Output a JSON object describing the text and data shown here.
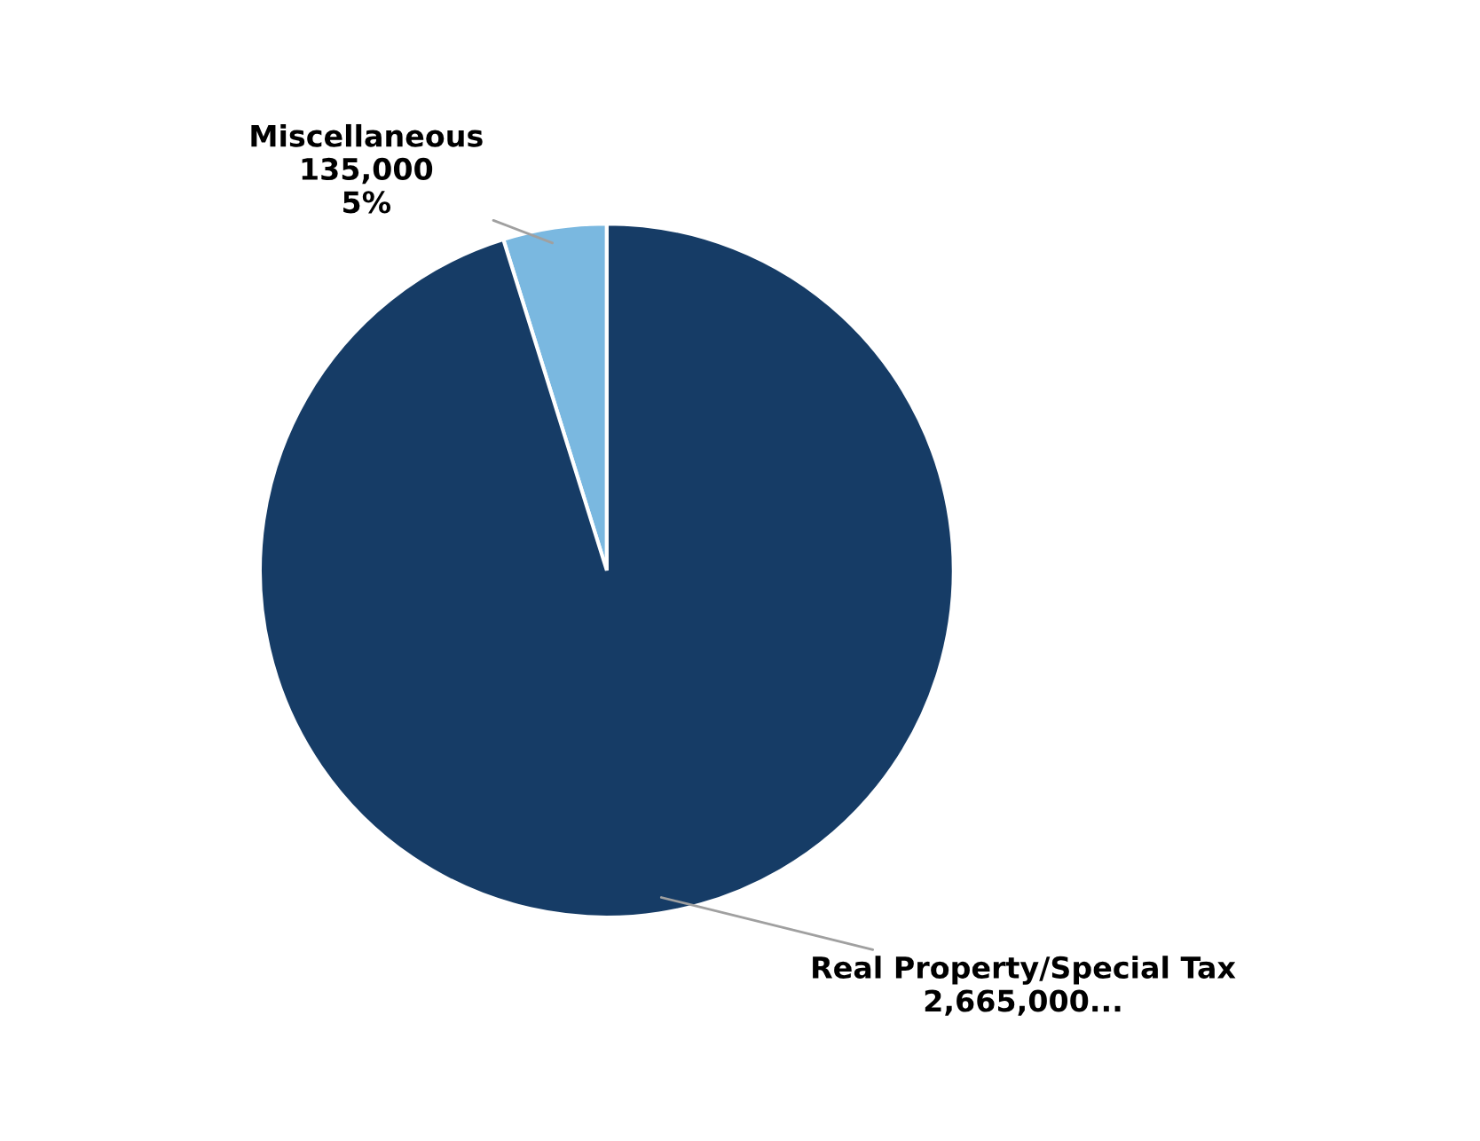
{
  "chart_data": {
    "type": "pie",
    "categories": [
      "Miscellaneous",
      "Real Property/Special Tax"
    ],
    "values": [
      135000,
      2665000
    ],
    "colors": [
      "#7ab8e0",
      "#163c66"
    ],
    "value_labels": [
      "135,000\n5%",
      "2,665,000..."
    ]
  }
}
